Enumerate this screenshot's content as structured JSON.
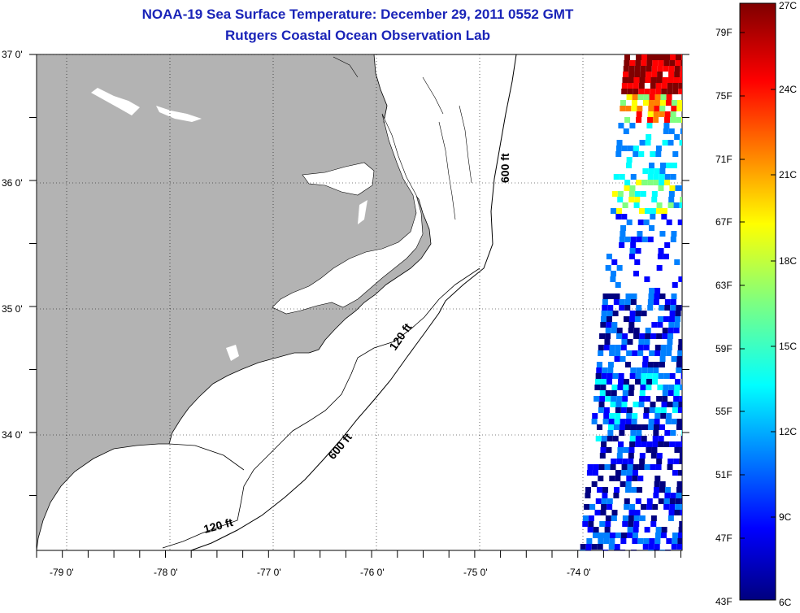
{
  "title_line1": "NOAA-19 Sea Surface Temperature:  December 29, 2011 0552 GMT",
  "title_line2": "Rutgers Coastal Ocean Observation Lab",
  "lat_labels": [
    "37 0'",
    "36 0'",
    "35 0'",
    "34 0'"
  ],
  "lon_labels": [
    "-79 0'",
    "-78 0'",
    "-77 0'",
    "-76 0'",
    "-75 0'",
    "-74 0'"
  ],
  "contour_labels": [
    "600 ft",
    "120 ft",
    "600 ft",
    "120 ft"
  ],
  "colorbar": {
    "fahrenheit": [
      "79F",
      "75F",
      "71F",
      "67F",
      "63F",
      "59F",
      "55F",
      "51F",
      "47F",
      "43F"
    ],
    "celsius": [
      "27C",
      "24C",
      "21C",
      "18C",
      "15C",
      "12C",
      "9C",
      "6C"
    ]
  },
  "colors": {
    "land": "#b3b3b3",
    "title": "#1a24b8",
    "colormap": [
      "#000080",
      "#0000ff",
      "#0080ff",
      "#00ffff",
      "#80ff80",
      "#ffff00",
      "#ff8000",
      "#ff0000",
      "#800000"
    ]
  }
}
